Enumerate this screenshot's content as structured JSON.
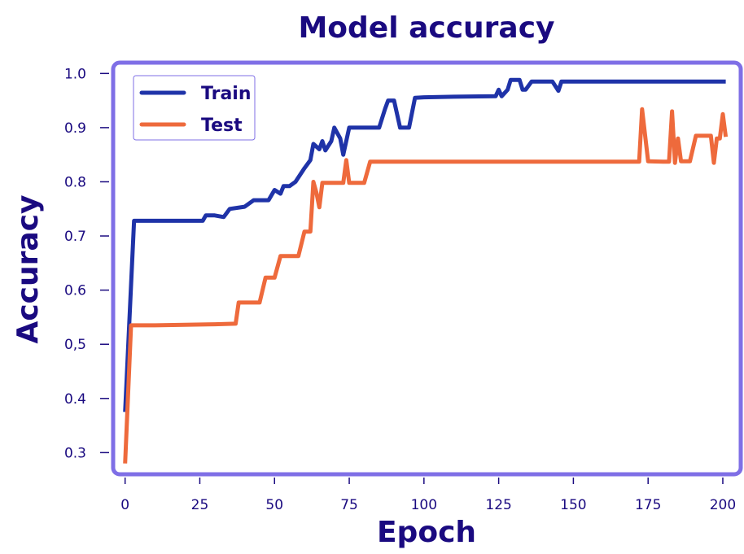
{
  "chart_data": {
    "type": "line",
    "title": "Model accuracy",
    "xlabel": "Epoch",
    "ylabel": "Accuracy",
    "xlim": [
      -4,
      206
    ],
    "ylim": [
      0.26,
      1.02
    ],
    "xticks": [
      0,
      25,
      50,
      75,
      100,
      125,
      150,
      175,
      200
    ],
    "yticks": [
      {
        "value": 0.3,
        "label": "0.3"
      },
      {
        "value": 0.4,
        "label": "0.4"
      },
      {
        "value": 0.5,
        "label": "0,5"
      },
      {
        "value": 0.6,
        "label": "0.6"
      },
      {
        "value": 0.7,
        "label": "0.7"
      },
      {
        "value": 0.8,
        "label": "0.8"
      },
      {
        "value": 0.9,
        "label": "0.9"
      },
      {
        "value": 1.0,
        "label": "1.0"
      }
    ],
    "grid": false,
    "legend_position": "top-left",
    "colors": {
      "frame": "#7f6fe6",
      "text": "#1a0a80",
      "train": "#1f33a8",
      "test": "#ee6a3c"
    },
    "series": [
      {
        "name": "Train",
        "color": "#1f33a8",
        "x": [
          0,
          3,
          4,
          10,
          20,
          26,
          27,
          30,
          33,
          35,
          40,
          43,
          45,
          48,
          50,
          52,
          53,
          55,
          57,
          60,
          62,
          63,
          65,
          66,
          67,
          69,
          70,
          72,
          73,
          75,
          80,
          85,
          87,
          88,
          90,
          92,
          95,
          97,
          100,
          110,
          124,
          125,
          126,
          128,
          129,
          130,
          131,
          132,
          133,
          134,
          136,
          143,
          145,
          146,
          148,
          150,
          160,
          170,
          180,
          190,
          200,
          201
        ],
        "y": [
          0.375,
          0.728,
          0.728,
          0.728,
          0.728,
          0.728,
          0.738,
          0.738,
          0.735,
          0.75,
          0.754,
          0.766,
          0.766,
          0.766,
          0.785,
          0.778,
          0.792,
          0.792,
          0.8,
          0.825,
          0.84,
          0.87,
          0.86,
          0.875,
          0.858,
          0.875,
          0.9,
          0.88,
          0.85,
          0.9,
          0.9,
          0.9,
          0.935,
          0.95,
          0.95,
          0.9,
          0.9,
          0.955,
          0.956,
          0.957,
          0.958,
          0.97,
          0.958,
          0.97,
          0.988,
          0.988,
          0.988,
          0.988,
          0.97,
          0.97,
          0.985,
          0.985,
          0.968,
          0.985,
          0.985,
          0.985,
          0.985,
          0.985,
          0.985,
          0.985,
          0.985,
          0.985
        ]
      },
      {
        "name": "Test",
        "color": "#ee6a3c",
        "x": [
          0,
          2,
          10,
          20,
          30,
          37,
          38,
          40,
          45,
          47,
          50,
          52,
          55,
          58,
          60,
          62,
          63,
          64,
          65,
          66,
          70,
          73,
          74,
          75,
          78,
          80,
          82,
          90,
          100,
          120,
          140,
          160,
          170,
          172,
          173,
          175,
          180,
          182,
          183,
          184,
          185,
          186,
          188,
          189,
          191,
          195,
          196,
          197,
          198,
          199,
          200,
          201
        ],
        "y": [
          0.28,
          0.535,
          0.535,
          0.536,
          0.537,
          0.538,
          0.577,
          0.577,
          0.577,
          0.623,
          0.623,
          0.663,
          0.663,
          0.663,
          0.708,
          0.708,
          0.8,
          0.78,
          0.753,
          0.798,
          0.798,
          0.798,
          0.84,
          0.798,
          0.798,
          0.798,
          0.837,
          0.837,
          0.837,
          0.837,
          0.837,
          0.837,
          0.837,
          0.837,
          0.934,
          0.838,
          0.837,
          0.837,
          0.93,
          0.835,
          0.88,
          0.838,
          0.838,
          0.838,
          0.885,
          0.885,
          0.885,
          0.835,
          0.88,
          0.88,
          0.925,
          0.883
        ]
      }
    ]
  }
}
